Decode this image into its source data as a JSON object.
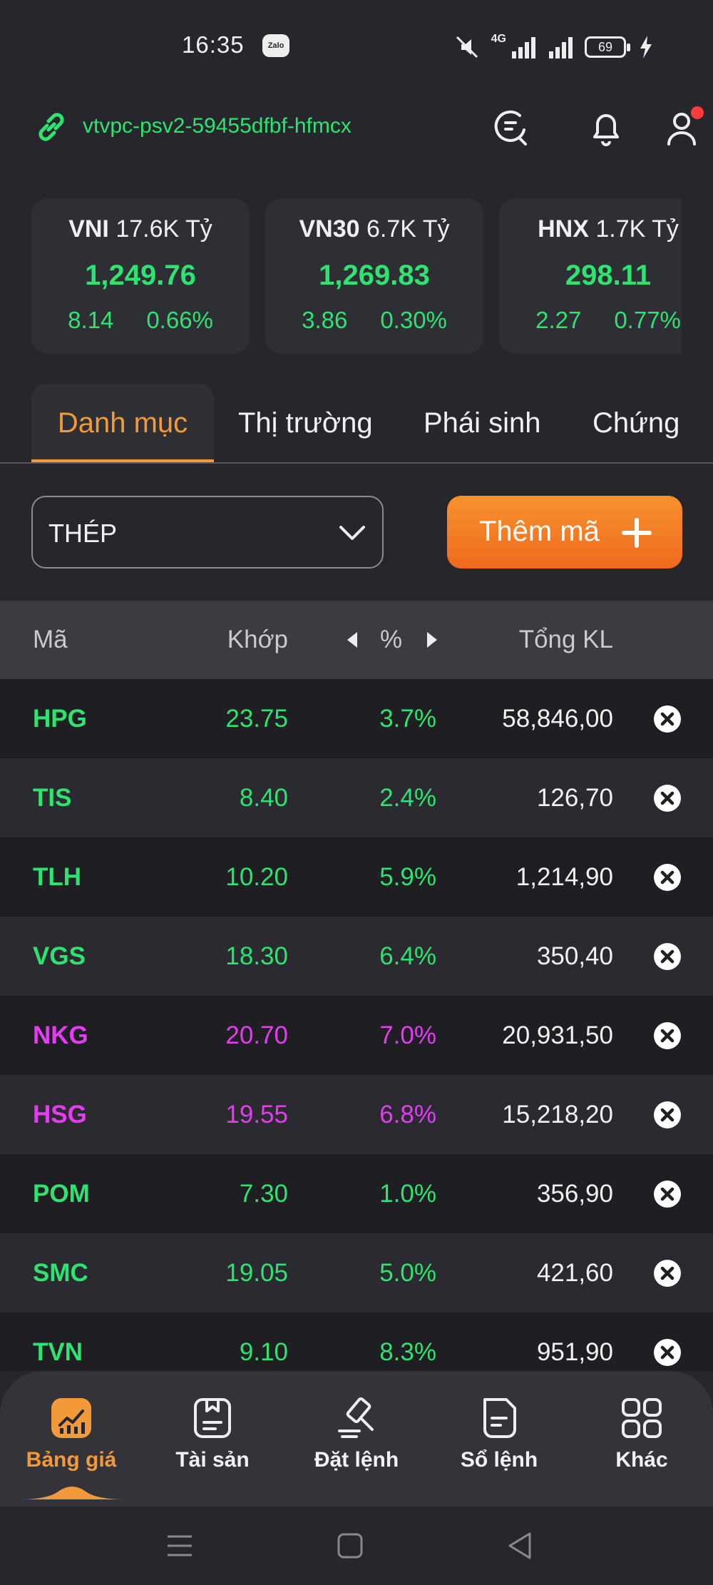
{
  "status_bar": {
    "time": "16:35",
    "notification_app": "Zalo",
    "network": "4G",
    "battery": "69"
  },
  "header": {
    "account": "vtvpc-psv2-59455dfbf-hfmcx",
    "icons": [
      "link-icon",
      "refresh-search-icon",
      "bell-icon",
      "user-icon"
    ],
    "notification_dot_color": "#ff3b3b"
  },
  "indices": [
    {
      "name": "VNI",
      "volume": "17.6K Tỷ",
      "value": "1,249.76",
      "change": "8.14",
      "change_pct": "0.66%"
    },
    {
      "name": "VN30",
      "volume": "6.7K Tỷ",
      "value": "1,269.83",
      "change": "3.86",
      "change_pct": "0.30%"
    },
    {
      "name": "HNX",
      "volume": "1.7K Tỷ",
      "value": "298.11",
      "change": "2.27",
      "change_pct": "0.77%"
    }
  ],
  "tabs": [
    "Danh mục",
    "Thị trường",
    "Phái sinh",
    "Chứng"
  ],
  "active_tab": "Danh mục",
  "watchlist": {
    "selected": "THÉP",
    "add_label": "Thêm mã"
  },
  "table": {
    "headers": {
      "symbol": "Mã",
      "price": "Khớp",
      "pct": "%",
      "volume": "Tổng KL"
    },
    "rows": [
      {
        "symbol": "HPG",
        "price": "23.75",
        "pct": "3.7%",
        "volume": "58,846,00",
        "color": "green"
      },
      {
        "symbol": "TIS",
        "price": "8.40",
        "pct": "2.4%",
        "volume": "126,70",
        "color": "green"
      },
      {
        "symbol": "TLH",
        "price": "10.20",
        "pct": "5.9%",
        "volume": "1,214,90",
        "color": "green"
      },
      {
        "symbol": "VGS",
        "price": "18.30",
        "pct": "6.4%",
        "volume": "350,40",
        "color": "green"
      },
      {
        "symbol": "NKG",
        "price": "20.70",
        "pct": "7.0%",
        "volume": "20,931,50",
        "color": "purple"
      },
      {
        "symbol": "HSG",
        "price": "19.55",
        "pct": "6.8%",
        "volume": "15,218,20",
        "color": "purple"
      },
      {
        "symbol": "POM",
        "price": "7.30",
        "pct": "1.0%",
        "volume": "356,90",
        "color": "green"
      },
      {
        "symbol": "SMC",
        "price": "19.05",
        "pct": "5.0%",
        "volume": "421,60",
        "color": "green"
      },
      {
        "symbol": "TVN",
        "price": "9.10",
        "pct": "8.3%",
        "volume": "951,90",
        "color": "green"
      }
    ]
  },
  "bottom_nav": [
    {
      "label": "Bảng giá",
      "icon": "chart-icon",
      "active": true
    },
    {
      "label": "Tài sản",
      "icon": "wallet-icon",
      "active": false
    },
    {
      "label": "Đặt lệnh",
      "icon": "gavel-icon",
      "active": false
    },
    {
      "label": "Sổ lệnh",
      "icon": "order-book-icon",
      "active": false
    },
    {
      "label": "Khác",
      "icon": "grid-icon",
      "active": false
    }
  ],
  "colors": {
    "up": "#2ee36f",
    "ceiling": "#e23ef0",
    "accent": "#f29a3a",
    "background": "#26262c"
  }
}
